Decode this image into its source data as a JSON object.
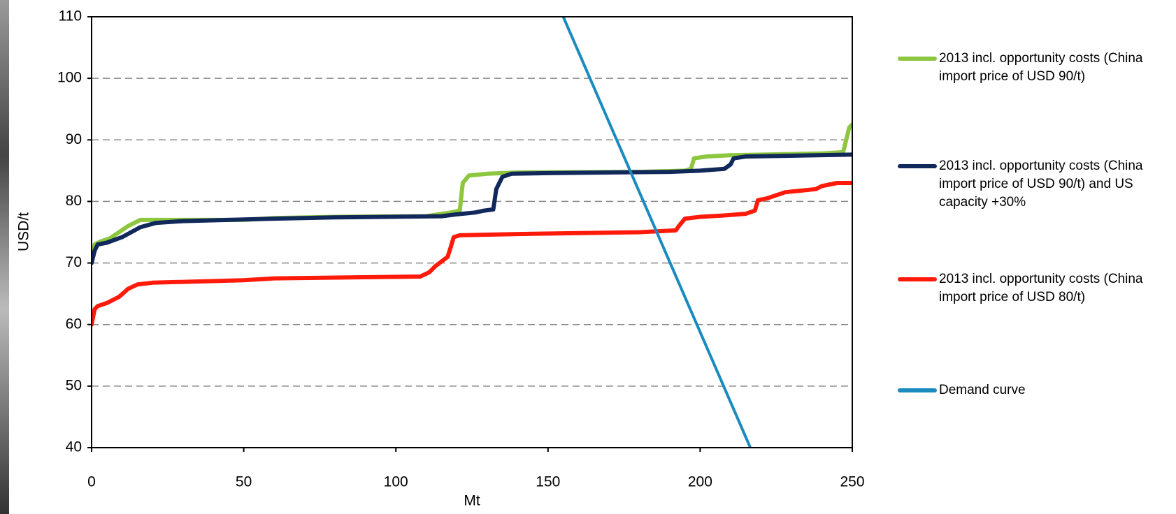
{
  "chart_data": {
    "type": "line",
    "x_label": "Mt",
    "y_label": "USD/t",
    "xlim": [
      0,
      250
    ],
    "xticks": [
      0,
      50,
      100,
      150,
      200,
      250
    ],
    "ylim": [
      40,
      110
    ],
    "yticks": [
      40,
      50,
      60,
      70,
      80,
      90,
      100,
      110
    ],
    "grid": true,
    "legend": "right",
    "series": [
      {
        "name": "2013 incl. opportunity costs (China import price of USD 90/t)",
        "color": "#8dc63f",
        "width": 6,
        "x": [
          0,
          1,
          3,
          6,
          9,
          12,
          16,
          20,
          50,
          60,
          80,
          110,
          118,
          121,
          122,
          124,
          130,
          140,
          180,
          195,
          197,
          198,
          202,
          210,
          240,
          247,
          248,
          249,
          250
        ],
        "values": [
          71,
          73,
          73.5,
          74,
          75,
          76,
          77,
          77,
          77,
          77.3,
          77.5,
          77.6,
          78.2,
          78.5,
          83,
          84.2,
          84.5,
          84.7,
          84.8,
          85,
          85.3,
          87,
          87.3,
          87.5,
          87.8,
          88,
          90,
          92,
          92.5
        ]
      },
      {
        "name": "2013 incl. opportunity costs (China import price of USD 90/t) and US capacity +30%",
        "color": "#10285a",
        "width": 6,
        "x": [
          0,
          1,
          2,
          5,
          10,
          13,
          16,
          21,
          30,
          60,
          80,
          115,
          120,
          126,
          129,
          132,
          133,
          135,
          138,
          150,
          190,
          200,
          208,
          210,
          211,
          215,
          250
        ],
        "values": [
          70,
          72,
          73,
          73.3,
          74.2,
          75,
          75.8,
          76.5,
          76.8,
          77.2,
          77.4,
          77.6,
          77.9,
          78.2,
          78.5,
          78.7,
          82,
          84,
          84.5,
          84.6,
          84.8,
          85,
          85.3,
          86,
          87,
          87.3,
          87.6
        ]
      },
      {
        "name": "2013 incl. opportunity costs (China import price of USD 80/t)",
        "color": "#ff1a0a",
        "width": 6,
        "x": [
          0,
          1,
          2,
          5,
          9,
          12,
          15,
          20,
          50,
          60,
          108,
          111,
          113,
          117,
          118,
          119,
          121,
          140,
          180,
          192,
          193,
          195,
          200,
          207,
          215,
          218,
          219,
          222,
          228,
          238,
          240,
          245,
          250
        ],
        "values": [
          60,
          62.5,
          63,
          63.5,
          64.5,
          65.8,
          66.5,
          66.8,
          67.2,
          67.5,
          67.8,
          68.5,
          69.5,
          71,
          72.5,
          74.2,
          74.5,
          74.7,
          75,
          75.3,
          76,
          77.2,
          77.5,
          77.7,
          78,
          78.5,
          80.2,
          80.5,
          81.5,
          82,
          82.5,
          83,
          83
        ]
      },
      {
        "name": "Demand curve",
        "color": "#1a8bbf",
        "width": 4,
        "x": [
          155,
          216.5
        ],
        "values": [
          110,
          40
        ]
      }
    ]
  }
}
